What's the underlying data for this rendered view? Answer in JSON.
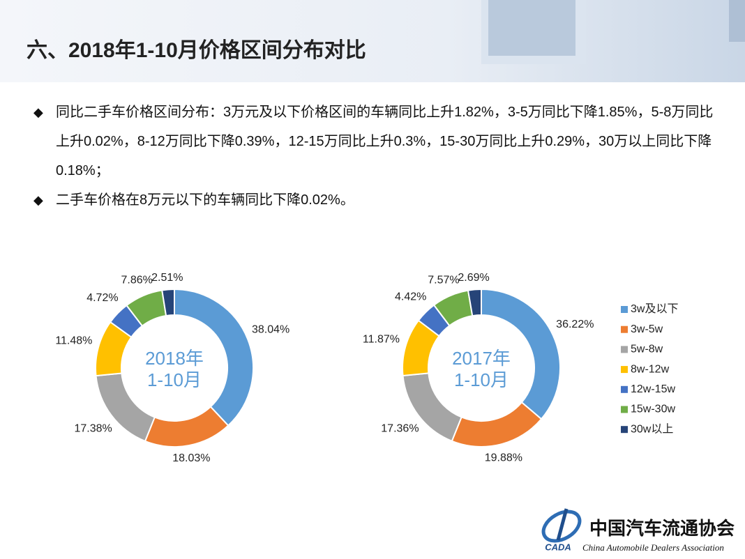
{
  "header": {
    "title": "六、2018年1-10月价格区间分布对比"
  },
  "bullets": [
    "同比二手车价格区间分布：3万元及以下价格区间的车辆同比上升1.82%，3-5万同比下降1.85%，5-8万同比上升0.02%，8-12万同比下降0.39%，12-15万同比上升0.3%，15-30万同比上升0.29%，30万以上同比下降0.18%；",
    "二手车价格在8万元以下的车辆同比下降0.02%。"
  ],
  "chart_data": [
    {
      "type": "donut",
      "center_label": [
        "2018年",
        "1-10月"
      ],
      "values": [
        38.04,
        18.03,
        17.38,
        11.48,
        4.72,
        7.86,
        2.51
      ],
      "value_labels": [
        "38.04%",
        "18.03%",
        "17.38%",
        "11.48%",
        "4.72%",
        "7.86%",
        "2.51%"
      ],
      "colors": [
        "#5b9bd5",
        "#ed7d31",
        "#a5a5a5",
        "#ffc000",
        "#4472c4",
        "#70ad47",
        "#264478"
      ]
    },
    {
      "type": "donut",
      "center_label": [
        "2017年",
        "1-10月"
      ],
      "categories": [
        "3w及以下",
        "3w-5w",
        "5w-8w",
        "8w-12w",
        "12w-15w",
        "15w-30w",
        "30w以上"
      ],
      "values": [
        36.22,
        19.88,
        17.36,
        11.87,
        4.42,
        7.57,
        2.69
      ],
      "value_labels": [
        "36.22%",
        "19.88%",
        "17.36%",
        "11.87%",
        "4.42%",
        "7.57%",
        "2.69%"
      ],
      "colors": [
        "#5b9bd5",
        "#ed7d31",
        "#a5a5a5",
        "#ffc000",
        "#4472c4",
        "#70ad47",
        "#264478"
      ],
      "legend": "right"
    }
  ],
  "footer": {
    "org_cn": "中国汽车流通协会",
    "org_en": "China Automobile Dealers Association",
    "logo_text": "CADA"
  }
}
